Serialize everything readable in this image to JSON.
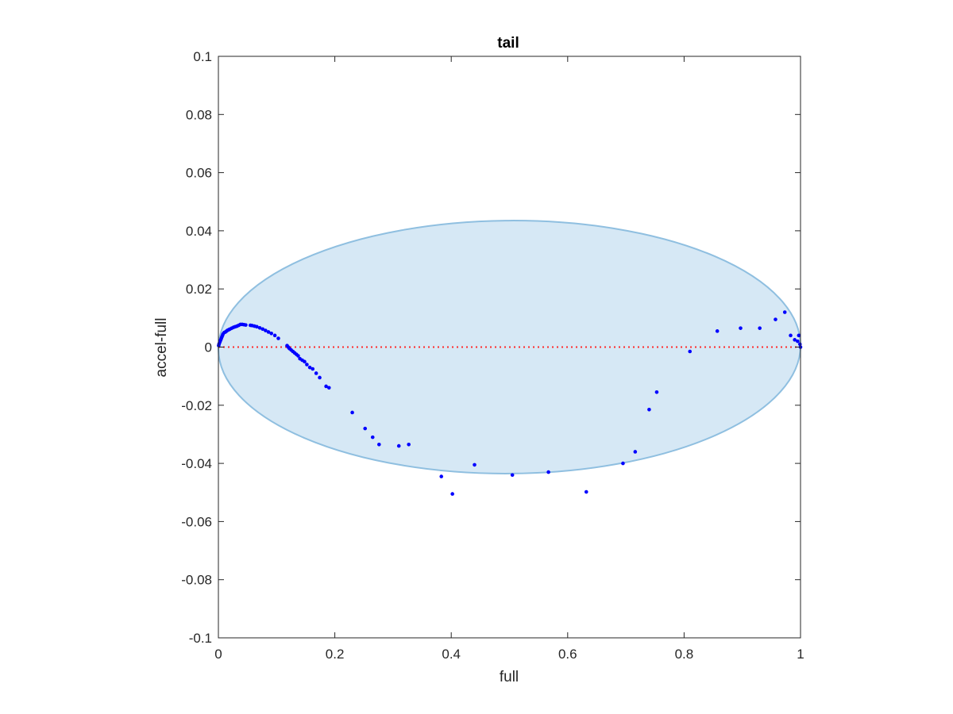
{
  "chart_data": {
    "type": "scatter",
    "title": "tail",
    "xlabel": "full",
    "ylabel": "accel-full",
    "xlim": [
      0,
      1
    ],
    "ylim": [
      -0.1,
      0.1
    ],
    "xticks": [
      0,
      0.2,
      0.4,
      0.6,
      0.8,
      1
    ],
    "xtick_labels": [
      "0",
      "0.2",
      "0.4",
      "0.6",
      "0.8",
      "1"
    ],
    "yticks": [
      0.1,
      0.08,
      0.06,
      0.04,
      0.02,
      0,
      -0.02,
      -0.04,
      -0.06,
      -0.08,
      -0.1
    ],
    "ytick_labels": [
      "0.1",
      "0.08",
      "0.06",
      "0.04",
      "0.02",
      "0",
      "-0.02",
      "-0.04",
      "-0.06",
      "-0.08",
      "-0.1"
    ],
    "grid": false,
    "ellipse": {
      "center": [
        0.5,
        0
      ],
      "semi_axes": [
        0.5,
        0.0435
      ],
      "rotation_deg": -0.4,
      "fill_color": "#d6e8f5",
      "edge_color": "#8fbfe0"
    },
    "reference_line": {
      "y": 0,
      "style": "dotted",
      "color": "#ff2a2a"
    },
    "marker_color": "#0000ff",
    "points": [
      [
        0.0005,
        0.0005
      ],
      [
        0.001,
        0.001
      ],
      [
        0.002,
        0.0015
      ],
      [
        0.003,
        0.002
      ],
      [
        0.004,
        0.0025
      ],
      [
        0.005,
        0.003
      ],
      [
        0.006,
        0.0035
      ],
      [
        0.007,
        0.004
      ],
      [
        0.008,
        0.0045
      ],
      [
        0.01,
        0.005
      ],
      [
        0.012,
        0.0052
      ],
      [
        0.014,
        0.0055
      ],
      [
        0.016,
        0.0058
      ],
      [
        0.018,
        0.006
      ],
      [
        0.02,
        0.0062
      ],
      [
        0.023,
        0.0065
      ],
      [
        0.026,
        0.0068
      ],
      [
        0.029,
        0.007
      ],
      [
        0.032,
        0.0072
      ],
      [
        0.035,
        0.0075
      ],
      [
        0.038,
        0.0078
      ],
      [
        0.041,
        0.0078
      ],
      [
        0.044,
        0.0077
      ],
      [
        0.047,
        0.0076
      ],
      [
        0.055,
        0.0075
      ],
      [
        0.058,
        0.0074
      ],
      [
        0.062,
        0.0072
      ],
      [
        0.066,
        0.007
      ],
      [
        0.071,
        0.0066
      ],
      [
        0.076,
        0.0062
      ],
      [
        0.081,
        0.0057
      ],
      [
        0.086,
        0.0052
      ],
      [
        0.091,
        0.0047
      ],
      [
        0.097,
        0.004
      ],
      [
        0.103,
        0.003
      ],
      [
        0.118,
        0.0005
      ],
      [
        0.12,
        0.0
      ],
      [
        0.122,
        -0.0005
      ],
      [
        0.125,
        -0.001
      ],
      [
        0.128,
        -0.0015
      ],
      [
        0.131,
        -0.002
      ],
      [
        0.134,
        -0.0025
      ],
      [
        0.137,
        -0.003
      ],
      [
        0.14,
        -0.004
      ],
      [
        0.144,
        -0.0045
      ],
      [
        0.148,
        -0.005
      ],
      [
        0.152,
        -0.006
      ],
      [
        0.157,
        -0.007
      ],
      [
        0.162,
        -0.0075
      ],
      [
        0.168,
        -0.009
      ],
      [
        0.174,
        -0.0105
      ],
      [
        0.185,
        -0.0135
      ],
      [
        0.19,
        -0.014
      ],
      [
        0.23,
        -0.0225
      ],
      [
        0.252,
        -0.028
      ],
      [
        0.265,
        -0.031
      ],
      [
        0.276,
        -0.0335
      ],
      [
        0.31,
        -0.034
      ],
      [
        0.327,
        -0.0335
      ],
      [
        0.383,
        -0.0445
      ],
      [
        0.402,
        -0.0505
      ],
      [
        0.44,
        -0.0405
      ],
      [
        0.505,
        -0.044
      ],
      [
        0.567,
        -0.043
      ],
      [
        0.632,
        -0.0498
      ],
      [
        0.695,
        -0.04
      ],
      [
        0.716,
        -0.036
      ],
      [
        0.74,
        -0.0215
      ],
      [
        0.753,
        -0.0155
      ],
      [
        0.81,
        -0.0015
      ],
      [
        0.857,
        0.0055
      ],
      [
        0.897,
        0.0065
      ],
      [
        0.93,
        0.0065
      ],
      [
        0.957,
        0.0095
      ],
      [
        0.973,
        0.012
      ],
      [
        0.983,
        0.004
      ],
      [
        0.99,
        0.0025
      ],
      [
        0.995,
        0.002
      ],
      [
        0.997,
        0.004
      ],
      [
        0.999,
        0.001
      ],
      [
        1.0,
        0.0
      ]
    ]
  }
}
